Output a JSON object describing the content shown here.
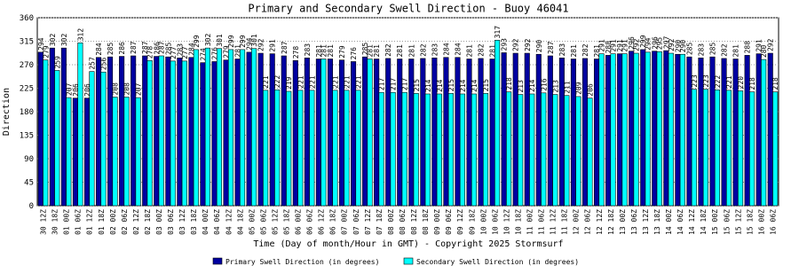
{
  "chart_data": {
    "type": "bar",
    "title": "Primary and Secondary Swell Direction - Buoy 46041",
    "x_label": "Time (Day of month/Hour in GMT) - Copyright 2025 Stormsurf",
    "y_label": "Direction",
    "categories": [
      "30 12Z",
      "30 18Z",
      "01 00Z",
      "01 06Z",
      "01 12Z",
      "01 18Z",
      "02 00Z",
      "02 06Z",
      "02 12Z",
      "02 18Z",
      "03 00Z",
      "03 06Z",
      "03 12Z",
      "03 18Z",
      "04 00Z",
      "04 06Z",
      "04 12Z",
      "04 18Z",
      "05 00Z",
      "05 06Z",
      "05 12Z",
      "05 18Z",
      "06 00Z",
      "06 06Z",
      "06 12Z",
      "06 18Z",
      "07 00Z",
      "07 06Z",
      "07 12Z",
      "07 18Z",
      "08 00Z",
      "08 06Z",
      "08 12Z",
      "08 18Z",
      "09 00Z",
      "09 06Z",
      "09 12Z",
      "09 18Z",
      "10 00Z",
      "10 06Z",
      "10 12Z",
      "10 18Z",
      "11 00Z",
      "11 06Z",
      "11 12Z",
      "11 18Z",
      "12 00Z",
      "12 06Z",
      "12 12Z",
      "12 18Z",
      "13 00Z",
      "13 06Z",
      "13 12Z",
      "13 18Z",
      "14 00Z",
      "14 06Z",
      "14 12Z",
      "14 18Z",
      "15 00Z",
      "15 06Z",
      "15 12Z",
      "15 18Z",
      "16 00Z",
      "16 06Z"
    ],
    "series": [
      {
        "name": "Primary Swell Direction (in degrees)",
        "color": "#0000a0",
        "values": [
          294,
          302,
          302,
          206,
          206,
          284,
          285,
          286,
          287,
          287,
          286,
          285,
          283,
          284,
          274,
          276,
          279,
          281,
          294,
          292,
          291,
          287,
          278,
          283,
          281,
          281,
          279,
          276,
          285,
          281,
          282,
          281,
          281,
          282,
          283,
          284,
          284,
          281,
          282,
          281,
          293,
          292,
          292,
          290,
          287,
          283,
          281,
          282,
          281,
          288,
          291,
          296,
          299,
          296,
          297,
          290,
          285,
          283,
          285,
          282,
          281,
          288,
          291,
          292
        ]
      },
      {
        "name": "Secondary Swell Direction (in degrees)",
        "color": "#00ffff",
        "values": [
          279,
          259,
          207,
          312,
          257,
          256,
          208,
          208,
          207,
          278,
          287,
          277,
          277,
          299,
          302,
          301,
          299,
          299,
          301,
          221,
          222,
          219,
          221,
          221,
          281,
          221,
          221,
          221,
          281,
          217,
          217,
          217,
          215,
          214,
          214,
          215,
          214,
          214,
          215,
          317,
          218,
          213,
          214,
          216,
          213,
          211,
          209,
          206,
          291,
          291,
          291,
          292,
          294,
          295,
          292,
          290,
          223,
          223,
          222,
          221,
          220,
          218,
          280,
          218
        ]
      }
    ],
    "ylim": [
      0,
      360
    ],
    "yticks": [
      0,
      45,
      90,
      135,
      180,
      225,
      270,
      315,
      360
    ],
    "grid": true
  }
}
